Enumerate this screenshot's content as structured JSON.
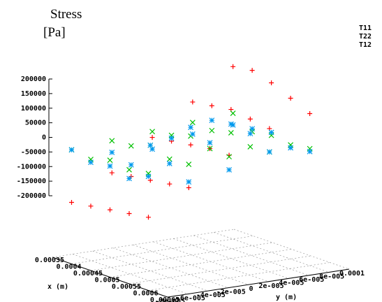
{
  "chart_data": {
    "type": "scatter3d",
    "zlabel": [
      "Stress",
      "[Pa]"
    ],
    "xlabel": "x (m)",
    "ylabel": "y (m)",
    "x": [
      0.0004,
      0.0004,
      0.0004,
      0.0004,
      0.0004,
      0.00045,
      0.00045,
      0.00045,
      0.00045,
      0.00045,
      0.0005,
      0.0005,
      0.0005,
      0.0005,
      0.0005,
      0.00055,
      0.00055,
      0.00055,
      0.00055,
      0.00055,
      0.0006,
      0.0006,
      0.0006,
      0.0006,
      0.0006
    ],
    "y": [
      -8e-05,
      -4e-05,
      0,
      4e-05,
      8e-05,
      -8e-05,
      -4e-05,
      0,
      4e-05,
      8e-05,
      -8e-05,
      -4e-05,
      0,
      4e-05,
      8e-05,
      -8e-05,
      -4e-05,
      0,
      4e-05,
      8e-05,
      -8e-05,
      -4e-05,
      0,
      4e-05,
      8e-05
    ],
    "series": [
      {
        "name": "T11",
        "color": "#ff0000",
        "marker": "plus",
        "values": [
          -200000,
          -120000,
          -20000,
          80000,
          180000,
          -190000,
          -110000,
          -10000,
          90000,
          190000,
          -180000,
          -100000,
          0,
          100000,
          170000,
          -170000,
          -90000,
          10000,
          90000,
          140000,
          -160000,
          -80000,
          10000,
          80000,
          110000
        ]
      },
      {
        "name": "T22",
        "color": "#00c000",
        "marker": "cross",
        "values": [
          -20000,
          -10000,
          0,
          10000,
          20000,
          -30000,
          -5000,
          10000,
          5000,
          -20000,
          -10000,
          20000,
          30000,
          20000,
          -10000,
          -20000,
          -5000,
          10000,
          -5000,
          -20000,
          -10000,
          0,
          5000,
          0,
          -10000
        ]
      },
      {
        "name": "T12",
        "color": "#0099ee",
        "marker": "star",
        "values": [
          -20000,
          -50000,
          -60000,
          -30000,
          -20000,
          -40000,
          -70000,
          0,
          40000,
          -10000,
          -30000,
          20000,
          60000,
          50000,
          0,
          -50000,
          -20000,
          30000,
          40000,
          -30000,
          -20000,
          -60000,
          -40000,
          0,
          -20000
        ]
      }
    ],
    "xlim": [
      0.00035,
      0.00065
    ],
    "xticks": [
      0.00035,
      0.0004,
      0.00045,
      0.0005,
      0.00055,
      0.0006,
      0.00065
    ],
    "ylim": [
      -8e-05,
      0.0001
    ],
    "yticks": [
      {
        "value": -8e-05,
        "label": "-8e-005"
      },
      {
        "value": -6e-05,
        "label": "-6e-005"
      },
      {
        "value": -4e-05,
        "label": "-4e-005"
      },
      {
        "value": -2e-05,
        "label": "-2e-005"
      },
      0,
      {
        "value": 2e-05,
        "label": "2e-005"
      },
      {
        "value": 4e-05,
        "label": "4e-005"
      },
      {
        "value": 6e-05,
        "label": "6e-005"
      },
      {
        "value": 8e-05,
        "label": "8e-005"
      },
      0.0001
    ],
    "zlim": [
      -200000,
      200000
    ],
    "zticks": [
      -200000,
      -150000,
      -100000,
      -50000,
      0,
      50000,
      100000,
      150000,
      200000
    ],
    "grid": true
  }
}
